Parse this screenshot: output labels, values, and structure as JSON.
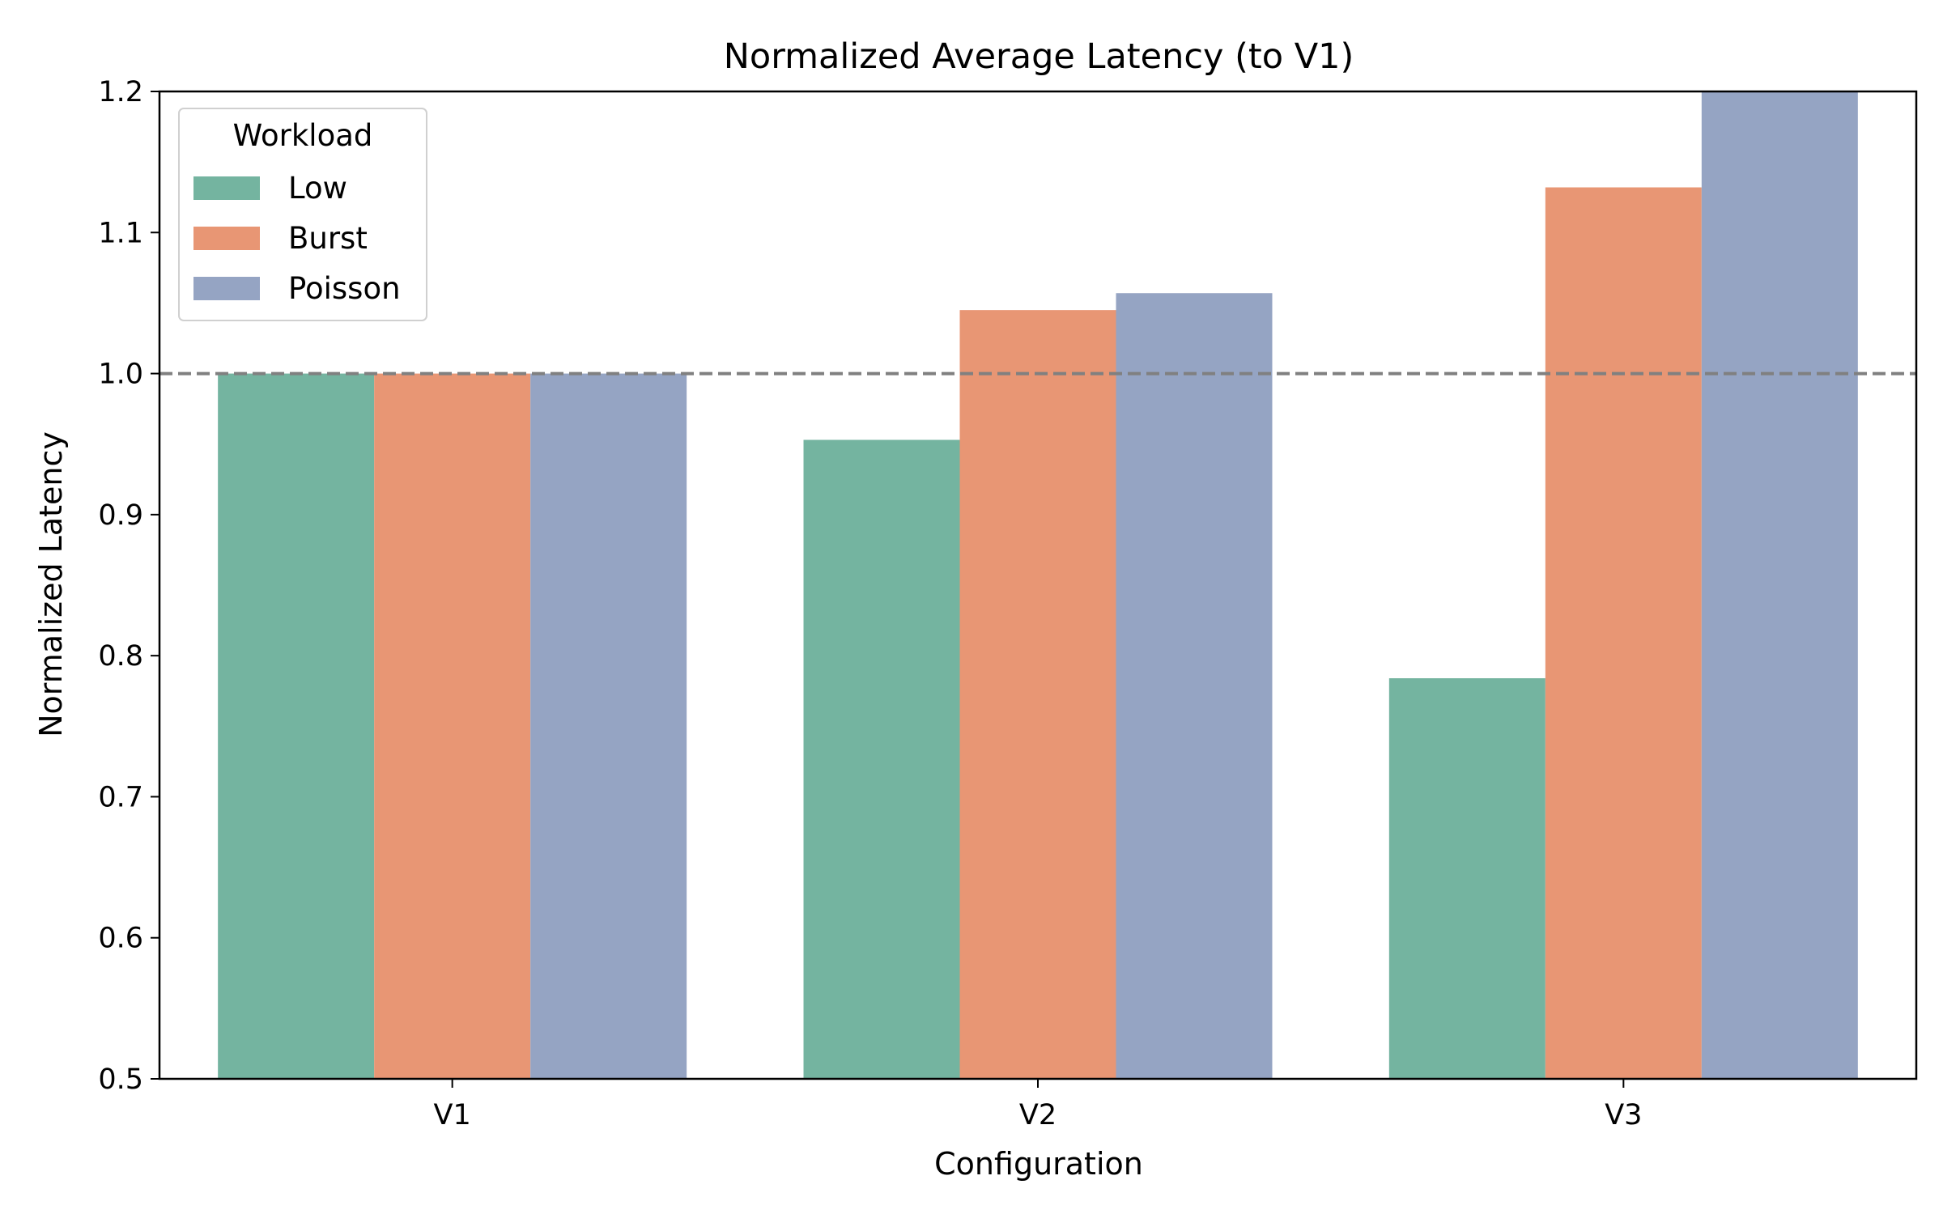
{
  "chart_data": {
    "type": "bar",
    "title": "Normalized Average Latency (to V1)",
    "xlabel": "Configuration",
    "ylabel": "Normalized Latency",
    "categories": [
      "V1",
      "V2",
      "V3"
    ],
    "series": [
      {
        "name": "Low",
        "color": "#74b4a0",
        "values": [
          1.0,
          0.953,
          0.784
        ]
      },
      {
        "name": "Burst",
        "color": "#e89674",
        "values": [
          1.0,
          1.045,
          1.132
        ]
      },
      {
        "name": "Poisson",
        "color": "#95a4c3",
        "values": [
          1.0,
          1.057,
          1.2
        ]
      }
    ],
    "ylim": [
      0.5,
      1.2
    ],
    "yticks": [
      "0.5",
      "0.6",
      "0.7",
      "0.8",
      "0.9",
      "1.0",
      "1.1",
      "1.2"
    ],
    "reference_line": {
      "y": 1.0,
      "style": "dashed",
      "color": "#808080"
    },
    "legend": {
      "title": "Workload",
      "placement": "top-left"
    },
    "grid": false
  }
}
